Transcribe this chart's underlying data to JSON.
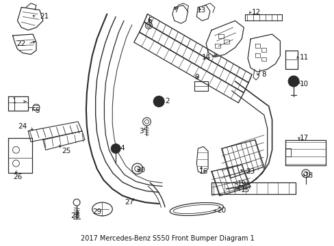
{
  "title": "2017 Mercedes-Benz S550 Front Bumper Diagram 1",
  "bg_color": "#ffffff",
  "line_color": "#2a2a2a",
  "text_color": "#111111",
  "fig_width": 4.89,
  "fig_height": 3.6,
  "dpi": 100
}
